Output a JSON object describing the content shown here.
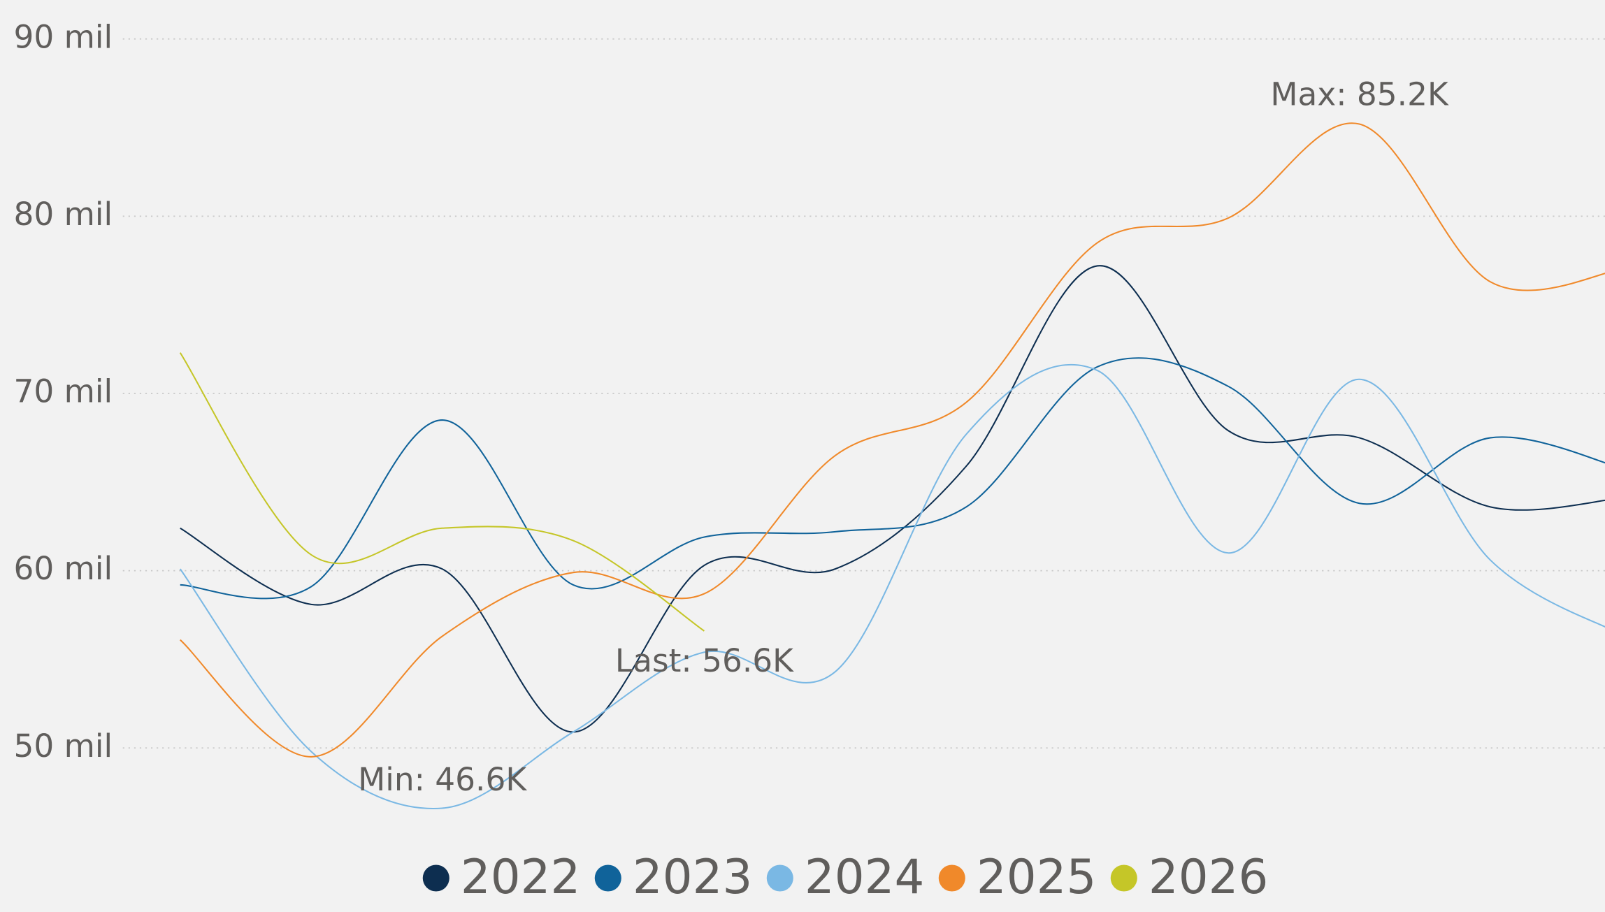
{
  "chart_data": {
    "type": "line",
    "categories": [
      null,
      null,
      null,
      null,
      null,
      null,
      null,
      null,
      null,
      null,
      null,
      null
    ],
    "series": [
      {
        "name": "2022",
        "color": "#0d2e50",
        "values": [
          62400,
          58100,
          60100,
          50900,
          60300,
          60100,
          65900,
          77200,
          67900,
          67500,
          63600,
          64100
        ]
      },
      {
        "name": "2023",
        "color": "#10639a",
        "values": [
          59200,
          59100,
          68500,
          59200,
          61900,
          62200,
          63600,
          71500,
          70400,
          63800,
          67500,
          65800
        ]
      },
      {
        "name": "2024",
        "color": "#7ab8e4",
        "values": [
          60100,
          49800,
          46600,
          50900,
          55400,
          54300,
          67700,
          71300,
          61000,
          70800,
          60600,
          56400
        ]
      },
      {
        "name": "2025",
        "color": "#f0892a",
        "values": [
          56100,
          49500,
          56300,
          59900,
          58700,
          66500,
          69500,
          78500,
          79900,
          85200,
          76300,
          77000
        ]
      },
      {
        "name": "2026",
        "color": "#c5c628",
        "values": [
          72300,
          60900,
          62400,
          61700,
          56600,
          null,
          null,
          null,
          null,
          null,
          null,
          null
        ]
      }
    ],
    "ylim": [
      45000,
      92000
    ],
    "yticks": [
      {
        "value": 50000,
        "label": "50 mil"
      },
      {
        "value": 60000,
        "label": "60 mil"
      },
      {
        "value": 70000,
        "label": "70 mil"
      },
      {
        "value": 80000,
        "label": "80 mil"
      },
      {
        "value": 90000,
        "label": "90 mil"
      }
    ],
    "grid": true,
    "legend": "bottom",
    "annotations": [
      "Max: 85.2K",
      "Min: 46.6K",
      "Last: 56.6K"
    ]
  }
}
